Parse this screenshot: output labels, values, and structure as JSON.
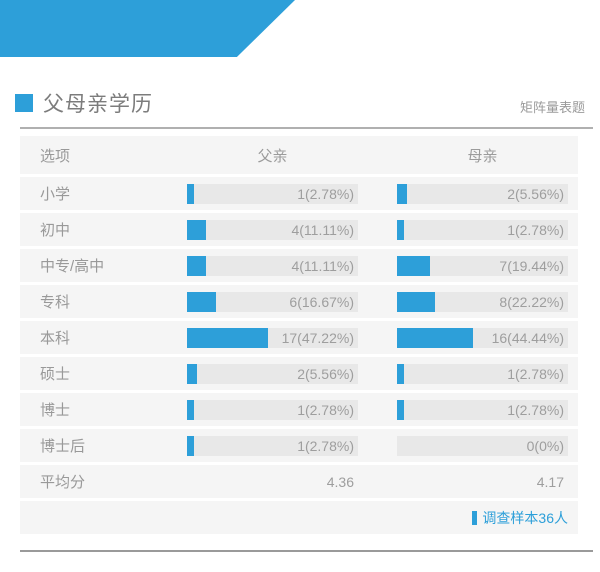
{
  "banner": {
    "color": "#2D9FD9"
  },
  "header": {
    "title": "父母亲学历",
    "question_type": "矩阵量表题"
  },
  "table": {
    "columns": [
      "选项",
      "父亲",
      "母亲"
    ],
    "rows": [
      {
        "label": "小学",
        "father": {
          "count": 1,
          "pct": 2.78,
          "text": "1(2.78%)"
        },
        "mother": {
          "count": 2,
          "pct": 5.56,
          "text": "2(5.56%)"
        }
      },
      {
        "label": "初中",
        "father": {
          "count": 4,
          "pct": 11.11,
          "text": "4(11.11%)"
        },
        "mother": {
          "count": 1,
          "pct": 2.78,
          "text": "1(2.78%)"
        }
      },
      {
        "label": "中专/高中",
        "father": {
          "count": 4,
          "pct": 11.11,
          "text": "4(11.11%)"
        },
        "mother": {
          "count": 7,
          "pct": 19.44,
          "text": "7(19.44%)"
        }
      },
      {
        "label": "专科",
        "father": {
          "count": 6,
          "pct": 16.67,
          "text": "6(16.67%)"
        },
        "mother": {
          "count": 8,
          "pct": 22.22,
          "text": "8(22.22%)"
        }
      },
      {
        "label": "本科",
        "father": {
          "count": 17,
          "pct": 47.22,
          "text": "17(47.22%)"
        },
        "mother": {
          "count": 16,
          "pct": 44.44,
          "text": "16(44.44%)"
        }
      },
      {
        "label": "硕士",
        "father": {
          "count": 2,
          "pct": 5.56,
          "text": "2(5.56%)"
        },
        "mother": {
          "count": 1,
          "pct": 2.78,
          "text": "1(2.78%)"
        }
      },
      {
        "label": "博士",
        "father": {
          "count": 1,
          "pct": 2.78,
          "text": "1(2.78%)"
        },
        "mother": {
          "count": 1,
          "pct": 2.78,
          "text": "1(2.78%)"
        }
      },
      {
        "label": "博士后",
        "father": {
          "count": 1,
          "pct": 2.78,
          "text": "1(2.78%)"
        },
        "mother": {
          "count": 0,
          "pct": 0,
          "text": "0(0%)"
        }
      },
      {
        "label": "平均分",
        "type": "average",
        "father": {
          "text": "4.36"
        },
        "mother": {
          "text": "4.17"
        }
      }
    ]
  },
  "footer": {
    "sample_label": "调查样本36人"
  },
  "chart_data": {
    "type": "bar",
    "title": "父母亲学历",
    "question_type": "矩阵量表题",
    "categories": [
      "小学",
      "初中",
      "中专/高中",
      "专科",
      "本科",
      "硕士",
      "博士",
      "博士后"
    ],
    "series": [
      {
        "name": "父亲",
        "counts": [
          1,
          4,
          4,
          6,
          17,
          2,
          1,
          1
        ],
        "percentages": [
          2.78,
          11.11,
          11.11,
          16.67,
          47.22,
          5.56,
          2.78,
          2.78
        ],
        "average": 4.36
      },
      {
        "name": "母亲",
        "counts": [
          2,
          1,
          7,
          8,
          16,
          1,
          1,
          0
        ],
        "percentages": [
          5.56,
          2.78,
          19.44,
          22.22,
          44.44,
          2.78,
          2.78,
          0
        ],
        "average": 4.17
      }
    ],
    "average_row_label": "平均分",
    "sample_size": 36,
    "xlim_pct": [
      0,
      100
    ],
    "bar_color": "#2D9FD9",
    "legend_position": "column-headers"
  }
}
